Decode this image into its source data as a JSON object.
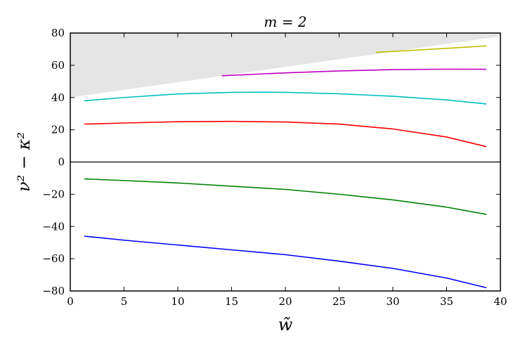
{
  "chart_data": {
    "type": "line",
    "title": "m = 2",
    "xlabel": "w̃",
    "ylabel": "ν² − κ²",
    "xlim": [
      0,
      40
    ],
    "ylim": [
      -80,
      80
    ],
    "xticks": [
      0,
      5,
      10,
      15,
      20,
      25,
      30,
      35,
      40
    ],
    "yticks": [
      -80,
      -60,
      -40,
      -20,
      0,
      20,
      40,
      60,
      80
    ],
    "grid": false,
    "legend": "none",
    "zero_line": true,
    "shaded_region": {
      "x": [
        0,
        40
      ],
      "lower": [
        40,
        78
      ],
      "upper": [
        80,
        80
      ],
      "color": "#e5e5e5"
    },
    "series": [
      {
        "color": "#0000ff",
        "x": [
          1.3,
          5,
          10,
          15,
          20,
          25,
          30,
          35,
          38.7
        ],
        "y": [
          -46,
          -48.5,
          -51.5,
          -54.5,
          -57.5,
          -61.5,
          -66,
          -72,
          -78
        ]
      },
      {
        "color": "#008000",
        "x": [
          1.3,
          5,
          10,
          15,
          20,
          25,
          30,
          35,
          38.7
        ],
        "y": [
          -10.5,
          -11.5,
          -13,
          -15,
          -17,
          -20,
          -23.5,
          -28,
          -32.5
        ]
      },
      {
        "color": "#ff0000",
        "x": [
          1.3,
          5,
          10,
          15,
          20,
          25,
          30,
          35,
          38.7
        ],
        "y": [
          23.5,
          24.2,
          25,
          25.2,
          24.8,
          23.5,
          20.5,
          15.5,
          9.5
        ]
      },
      {
        "color": "#00bfbf",
        "x": [
          1.3,
          5,
          10,
          15,
          18,
          20,
          25,
          30,
          35,
          38.7
        ],
        "y": [
          38,
          40,
          42.2,
          43.2,
          43.3,
          43.2,
          42.3,
          40.8,
          38.5,
          36
        ]
      },
      {
        "color": "#bf00bf",
        "x": [
          14.1,
          20,
          25,
          30,
          35,
          38.7
        ],
        "y": [
          53.5,
          55.3,
          56.5,
          57.3,
          57.6,
          57.5
        ]
      },
      {
        "color": "#bfbf00",
        "x": [
          28.4,
          30,
          35,
          38.7
        ],
        "y": [
          68,
          68.6,
          70.5,
          72
        ]
      }
    ]
  }
}
